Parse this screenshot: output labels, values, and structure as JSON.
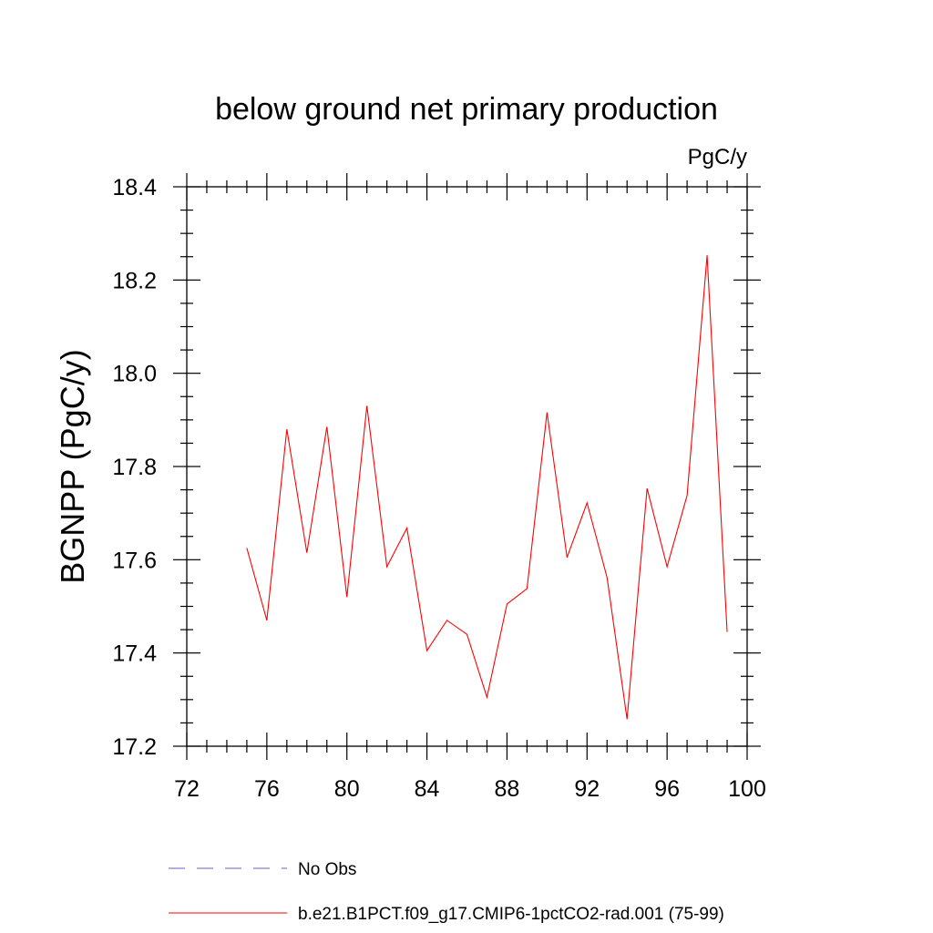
{
  "chart_data": {
    "type": "line",
    "title": "below ground net primary production",
    "units_label": "PgC/y",
    "ylabel": "BGNPP  (PgC/y)",
    "xlabel": "",
    "xlim": [
      72,
      100
    ],
    "ylim": [
      17.2,
      18.4
    ],
    "x_ticks": [
      72,
      76,
      80,
      84,
      88,
      92,
      96,
      100
    ],
    "x_tick_labels": [
      "72",
      "76",
      "80",
      "84",
      "88",
      "92",
      "96",
      "100"
    ],
    "y_ticks": [
      17.2,
      17.4,
      17.6,
      17.8,
      18.0,
      18.2,
      18.4
    ],
    "y_tick_labels": [
      "17.2",
      "17.4",
      "17.6",
      "17.8",
      "18.0",
      "18.2",
      "18.4"
    ],
    "grid": false,
    "legend_position": "bottom",
    "series": [
      {
        "name": "b.e21.B1PCT.f09_g17.CMIP6-1pctCO2-rad.001 (75-99)",
        "color": "#ff0000",
        "dash": "solid",
        "x": [
          75,
          76,
          77,
          78,
          79,
          80,
          81,
          82,
          83,
          84,
          85,
          86,
          87,
          88,
          89,
          90,
          91,
          92,
          93,
          94,
          95,
          96,
          97,
          98,
          99
        ],
        "y": [
          17.625,
          17.47,
          17.88,
          17.615,
          17.885,
          17.52,
          17.93,
          17.585,
          17.668,
          17.405,
          17.47,
          17.44,
          17.305,
          17.505,
          17.538,
          17.916,
          17.605,
          17.722,
          17.562,
          17.258,
          17.753,
          17.585,
          17.738,
          18.253,
          17.445
        ]
      }
    ],
    "legend": [
      {
        "label": "No Obs",
        "color": "#6a5acd",
        "dash": "dashed"
      },
      {
        "label": "b.e21.B1PCT.f09_g17.CMIP6-1pctCO2-rad.001 (75-99)",
        "color": "#ff0000",
        "dash": "solid"
      }
    ]
  }
}
